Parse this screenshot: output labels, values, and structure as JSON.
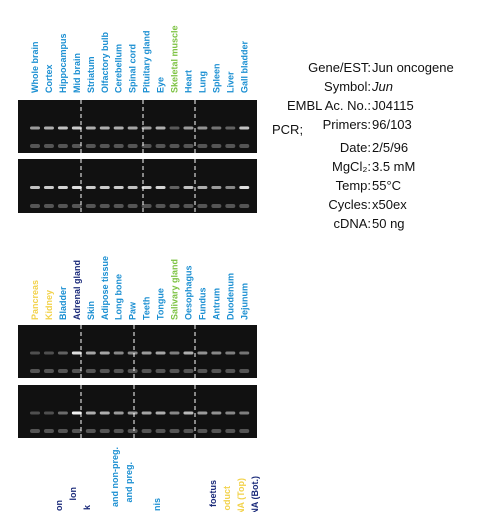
{
  "top_lanes": [
    {
      "label": "Whole brain",
      "color": "#1b8fd2"
    },
    {
      "label": "Cortex",
      "color": "#1b8fd2"
    },
    {
      "label": "Hippocampus",
      "color": "#1b8fd2"
    },
    {
      "label": "Mid brain",
      "color": "#1b8fd2"
    },
    {
      "label": "Striatum",
      "color": "#1b8fd2"
    },
    {
      "label": "Olfactory bulb",
      "color": "#1b8fd2"
    },
    {
      "label": "Cerebellum",
      "color": "#1b8fd2"
    },
    {
      "label": "Spinal cord",
      "color": "#1b8fd2"
    },
    {
      "label": "Pituitary gland",
      "color": "#1b8fd2"
    },
    {
      "label": "Eye",
      "color": "#1b8fd2"
    },
    {
      "label": "Skeletal muscle",
      "color": "#7cc242"
    },
    {
      "label": "Heart",
      "color": "#1b8fd2"
    },
    {
      "label": "Lung",
      "color": "#1b8fd2"
    },
    {
      "label": "Spleen",
      "color": "#1b8fd2"
    },
    {
      "label": "Liver",
      "color": "#1b8fd2"
    },
    {
      "label": "Gall bladder",
      "color": "#1b8fd2"
    }
  ],
  "bottom_lanes": [
    {
      "label": "Pancreas",
      "color": "#f2d24b"
    },
    {
      "label": "Kidney",
      "color": "#f2d24b"
    },
    {
      "label": "Bladder",
      "color": "#1b8fd2"
    },
    {
      "label": "Adrenal gland",
      "color": "#1a2a7a"
    },
    {
      "label": "Skin",
      "color": "#1b8fd2"
    },
    {
      "label": "Adipose tissue",
      "color": "#1b8fd2"
    },
    {
      "label": "Long bone",
      "color": "#1b8fd2"
    },
    {
      "label": "Paw",
      "color": "#1b8fd2"
    },
    {
      "label": "Teeth",
      "color": "#1b8fd2"
    },
    {
      "label": "Tongue",
      "color": "#1b8fd2"
    },
    {
      "label": "Salivary gland",
      "color": "#7cc242"
    },
    {
      "label": "Oesophagus",
      "color": "#1b8fd2"
    },
    {
      "label": "Fundus",
      "color": "#1b8fd2"
    },
    {
      "label": "Antrum",
      "color": "#1b8fd2"
    },
    {
      "label": "Duodenum",
      "color": "#1b8fd2"
    },
    {
      "label": "Jejunum",
      "color": "#1b8fd2"
    }
  ],
  "cut_labels": [
    {
      "label": "on",
      "color": "#1a2a7a"
    },
    {
      "label": "lon",
      "color": "#1a2a7a"
    },
    {
      "label": "k",
      "color": "#1a2a7a"
    },
    {
      "label": "and non-preg.",
      "color": "#1b8fd2"
    },
    {
      "label": "and preg.",
      "color": "#1b8fd2"
    },
    {
      "label": "nis",
      "color": "#1b8fd2"
    },
    {
      "label": "foetus",
      "color": "#1a2a7a"
    },
    {
      "label": "oduct",
      "color": "#f2d24b"
    },
    {
      "label": "NA (Top)",
      "color": "#f2d24b"
    },
    {
      "label": "NA (Bot.)",
      "color": "#1a2a7a"
    }
  ],
  "info": {
    "rows": [
      {
        "label": "Gene/EST:",
        "value": "Jun oncogene"
      },
      {
        "label": "Symbol:",
        "value": "Jun"
      },
      {
        "label": "EMBL Ac. No.:",
        "value": "J04115"
      },
      {
        "label": "Primers:",
        "value": "96/103"
      }
    ],
    "pcr_heading": "PCR;",
    "pcr_rows": [
      {
        "label": "Date:",
        "value": "2/5/96"
      },
      {
        "label": "MgCl₂:",
        "value": "3.5 mM"
      },
      {
        "label": "Temp:",
        "value": "55°C"
      },
      {
        "label": "Cycles:",
        "value": "x50ex"
      },
      {
        "label": "cDNA:",
        "value": "50 ng"
      }
    ]
  }
}
